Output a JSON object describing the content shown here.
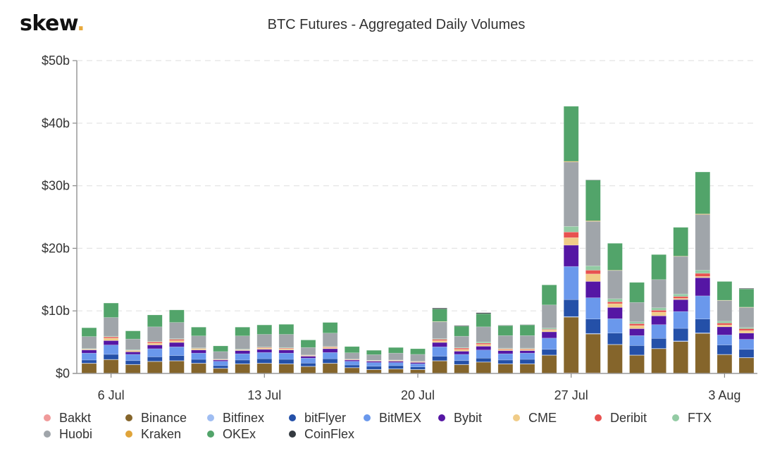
{
  "brand": {
    "name": "skew",
    "dot": ".",
    "accent": "#e8a93b"
  },
  "chart_data": {
    "type": "bar",
    "stacked": true,
    "title": "BTC Futures - Aggregated Daily Volumes",
    "xlabel": "",
    "ylabel": "",
    "ylim": [
      0,
      50
    ],
    "yticks": [
      0,
      10,
      20,
      30,
      40,
      50
    ],
    "ytick_labels": [
      "$0",
      "$10b",
      "$20b",
      "$30b",
      "$40b",
      "$50b"
    ],
    "grid": "horizontal dashed",
    "legend_position": "bottom",
    "xtick_labels": [
      {
        "index": 1,
        "label": "6 Jul"
      },
      {
        "index": 8,
        "label": "13 Jul"
      },
      {
        "index": 15,
        "label": "20 Jul"
      },
      {
        "index": 22,
        "label": "27 Jul"
      },
      {
        "index": 29,
        "label": "3 Aug"
      }
    ],
    "categories": [
      "5 Jul",
      "6 Jul",
      "7 Jul",
      "8 Jul",
      "9 Jul",
      "10 Jul",
      "11 Jul",
      "12 Jul",
      "13 Jul",
      "14 Jul",
      "15 Jul",
      "16 Jul",
      "17 Jul",
      "18 Jul",
      "19 Jul",
      "20 Jul",
      "21 Jul",
      "22 Jul",
      "23 Jul",
      "24 Jul",
      "25 Jul",
      "26 Jul",
      "27 Jul",
      "28 Jul",
      "29 Jul",
      "30 Jul",
      "31 Jul",
      "1 Aug",
      "2 Aug",
      "3 Aug",
      "4 Aug"
    ],
    "series": [
      {
        "name": "Bakkt",
        "color": "#f09a9a",
        "values": [
          0,
          0,
          0,
          0,
          0,
          0,
          0,
          0,
          0,
          0,
          0,
          0,
          0,
          0,
          0,
          0,
          0,
          0,
          0,
          0,
          0,
          0,
          0.1,
          0.1,
          0,
          0,
          0.05,
          0,
          0,
          0,
          0
        ]
      },
      {
        "name": "Binance",
        "color": "#85652b",
        "values": [
          1.6,
          2.2,
          1.4,
          1.9,
          2.0,
          1.6,
          0.8,
          1.5,
          1.6,
          1.5,
          1.1,
          1.6,
          0.9,
          0.6,
          0.7,
          0.6,
          2.0,
          1.4,
          1.8,
          1.5,
          1.5,
          2.9,
          8.9,
          6.2,
          4.6,
          2.9,
          3.9,
          5.1,
          6.4,
          3.0,
          2.5
        ]
      },
      {
        "name": "Bitfinex",
        "color": "#9fbdf2",
        "values": [
          0.05,
          0.05,
          0.05,
          0.05,
          0.05,
          0.05,
          0.05,
          0.05,
          0.05,
          0.05,
          0.05,
          0.05,
          0.05,
          0.05,
          0.05,
          0.05,
          0.05,
          0.05,
          0.05,
          0.05,
          0.05,
          0.05,
          0.1,
          0.1,
          0.05,
          0.05,
          0.05,
          0.1,
          0.1,
          0.05,
          0.05
        ]
      },
      {
        "name": "bitFlyer",
        "color": "#2450a8",
        "values": [
          0.5,
          0.8,
          0.6,
          0.7,
          0.8,
          0.6,
          0.4,
          0.6,
          0.7,
          0.7,
          0.5,
          0.7,
          0.4,
          0.5,
          0.5,
          0.4,
          0.7,
          0.6,
          0.6,
          0.6,
          0.7,
          0.9,
          2.7,
          2.3,
          1.8,
          1.5,
          1.6,
          2.0,
          2.2,
          1.5,
          1.3
        ]
      },
      {
        "name": "BitMEX",
        "color": "#6a98ec",
        "values": [
          1.1,
          1.5,
          1.0,
          1.3,
          1.4,
          1.0,
          0.7,
          1.0,
          1.0,
          1.0,
          0.8,
          1.0,
          0.6,
          0.6,
          0.5,
          0.5,
          1.5,
          1.0,
          1.3,
          1.0,
          1.0,
          1.8,
          5.3,
          3.4,
          2.3,
          1.6,
          2.2,
          2.7,
          3.7,
          1.6,
          1.6
        ]
      },
      {
        "name": "Bybit",
        "color": "#5516a4",
        "values": [
          0.5,
          0.7,
          0.4,
          0.6,
          0.7,
          0.5,
          0.2,
          0.5,
          0.5,
          0.5,
          0.3,
          0.6,
          0.2,
          0.2,
          0.2,
          0.2,
          0.7,
          0.5,
          0.6,
          0.5,
          0.4,
          1.0,
          3.4,
          2.6,
          1.8,
          1.1,
          1.4,
          1.9,
          2.9,
          1.3,
          1.0
        ]
      },
      {
        "name": "CME",
        "color": "#f0cc88",
        "values": [
          0.1,
          0.4,
          0.2,
          0.3,
          0.3,
          0.2,
          0.05,
          0.1,
          0.2,
          0.2,
          0.1,
          0.2,
          0.05,
          0.05,
          0.1,
          0.1,
          0.3,
          0.3,
          0.3,
          0.2,
          0.2,
          0.3,
          1.2,
          1.2,
          0.6,
          0.5,
          0.6,
          0.2,
          0.2,
          0.3,
          0.4
        ]
      },
      {
        "name": "Deribit",
        "color": "#e85250",
        "values": [
          0.05,
          0.2,
          0.05,
          0.2,
          0.2,
          0.05,
          0.05,
          0.05,
          0.1,
          0.1,
          0.05,
          0.1,
          0.05,
          0.05,
          0.05,
          0.05,
          0.2,
          0.2,
          0.2,
          0.1,
          0.1,
          0.1,
          0.9,
          0.6,
          0.3,
          0.3,
          0.3,
          0.3,
          0.5,
          0.3,
          0.3
        ]
      },
      {
        "name": "FTX",
        "color": "#93cba4",
        "values": [
          0.1,
          0.1,
          0.1,
          0.1,
          0.1,
          0.1,
          0.05,
          0.1,
          0.1,
          0.1,
          0.05,
          0.1,
          0.05,
          0.05,
          0.05,
          0.05,
          0.1,
          0.1,
          0.2,
          0.1,
          0.1,
          0.2,
          0.9,
          0.7,
          0.5,
          0.3,
          0.4,
          0.4,
          0.5,
          0.3,
          0.2
        ]
      },
      {
        "name": "Huobi",
        "color": "#a0a5aa",
        "values": [
          1.9,
          3.0,
          1.7,
          2.3,
          2.6,
          1.9,
          1.2,
          2.1,
          2.0,
          2.1,
          1.2,
          2.1,
          1.0,
          0.9,
          1.1,
          1.1,
          2.7,
          1.8,
          2.4,
          2.0,
          2.0,
          3.7,
          10.3,
          7.1,
          4.5,
          3.1,
          4.5,
          6.0,
          8.9,
          3.3,
          3.2
        ]
      },
      {
        "name": "Kraken",
        "color": "#e0a43a",
        "values": [
          0,
          0,
          0,
          0,
          0,
          0,
          0,
          0,
          0,
          0,
          0,
          0,
          0,
          0,
          0,
          0,
          0.05,
          0,
          0,
          0,
          0,
          0,
          0.1,
          0.1,
          0.05,
          0,
          0,
          0.05,
          0.1,
          0.05,
          0.05
        ]
      },
      {
        "name": "OKEx",
        "color": "#52a46a",
        "values": [
          1.4,
          2.3,
          1.3,
          1.9,
          2.0,
          1.4,
          0.9,
          1.4,
          1.5,
          1.6,
          1.2,
          1.7,
          1.0,
          0.7,
          0.9,
          0.9,
          2.0,
          1.6,
          2.1,
          1.6,
          1.7,
          3.2,
          8.8,
          6.5,
          4.3,
          3.2,
          4.0,
          4.6,
          6.7,
          3.0,
          2.9
        ]
      },
      {
        "name": "CoinFlex",
        "color": "#343a40",
        "values": [
          0,
          0,
          0,
          0,
          0,
          0,
          0,
          0,
          0,
          0,
          0,
          0,
          0,
          0,
          0,
          0,
          0.15,
          0.1,
          0.15,
          0.05,
          0.05,
          0,
          0,
          0.05,
          0,
          0,
          0,
          0,
          0,
          0,
          0.1
        ]
      }
    ]
  }
}
